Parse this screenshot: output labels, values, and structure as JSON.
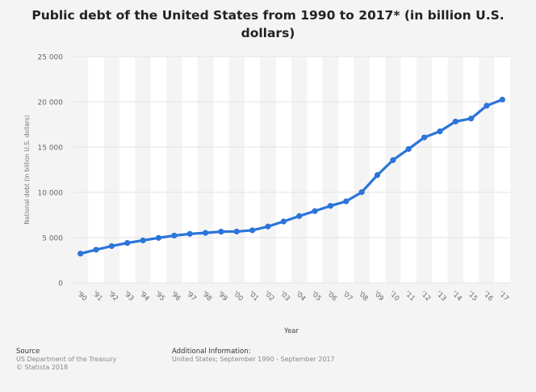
{
  "title": "Public debt of the United States from 1990 to 2017* (in billion U.S. dollars)",
  "footer": {
    "source_label": "Source",
    "source_lines": [
      "US Department of the Treasury",
      "© Statista 2018"
    ],
    "info_label": "Additional Information:",
    "info_text": "United States; September 1990 - September 2017"
  },
  "colors": {
    "line": "#2b74d9",
    "band": "#ffffff",
    "grid": "#e3e3e3"
  },
  "chart_data": {
    "type": "line",
    "title": "Public debt of the United States from 1990 to 2017* (in billion U.S. dollars)",
    "xlabel": "Year",
    "ylabel": "National debt (in billion U.S. dollars)",
    "categories": [
      "'90",
      "'91",
      "'92",
      "'93",
      "'94",
      "'95",
      "'96",
      "'97",
      "'98",
      "'99",
      "'00",
      "'01",
      "'02",
      "'03",
      "'04",
      "'05",
      "'06",
      "'07",
      "'08",
      "'09",
      "'10",
      "'11",
      "'12",
      "'13",
      "'14",
      "'15",
      "'16",
      "'17"
    ],
    "values": [
      3233,
      3665,
      4065,
      4411,
      4693,
      4974,
      5225,
      5413,
      5526,
      5656,
      5674,
      5807,
      6228,
      6783,
      7379,
      7933,
      8507,
      9008,
      10025,
      11910,
      13562,
      14790,
      16066,
      16738,
      17824,
      18151,
      19573,
      20245
    ],
    "yticks": [
      "0",
      "5 000",
      "10 000",
      "15 000",
      "20 000",
      "25 000"
    ],
    "ylim": [
      0,
      25000
    ],
    "grid": true
  }
}
